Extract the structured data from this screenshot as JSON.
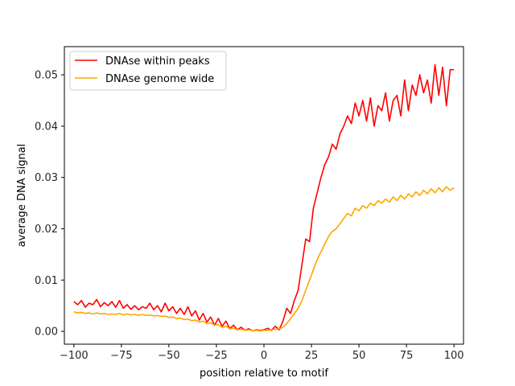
{
  "chart_data": {
    "type": "line",
    "title": "",
    "xlabel": "position relative to motif",
    "ylabel": "average DNA signal",
    "xlim": [
      -105,
      105
    ],
    "ylim": [
      -0.0025,
      0.0555
    ],
    "xticks": [
      -100,
      -75,
      -50,
      -25,
      0,
      25,
      50,
      75,
      100
    ],
    "xtick_labels": [
      "−100",
      "−75",
      "−50",
      "−25",
      "0",
      "25",
      "50",
      "75",
      "100"
    ],
    "yticks": [
      0.0,
      0.01,
      0.02,
      0.03,
      0.04,
      0.05
    ],
    "ytick_labels": [
      "0.00",
      "0.01",
      "0.02",
      "0.03",
      "0.04",
      "0.05"
    ],
    "grid": false,
    "legend_position": "top-left",
    "x": [
      -100,
      -98,
      -96,
      -94,
      -92,
      -90,
      -88,
      -86,
      -84,
      -82,
      -80,
      -78,
      -76,
      -74,
      -72,
      -70,
      -68,
      -66,
      -64,
      -62,
      -60,
      -58,
      -56,
      -54,
      -52,
      -50,
      -48,
      -46,
      -44,
      -42,
      -40,
      -38,
      -36,
      -34,
      -32,
      -30,
      -28,
      -26,
      -24,
      -22,
      -20,
      -18,
      -16,
      -14,
      -12,
      -10,
      -8,
      -6,
      -4,
      -2,
      0,
      2,
      4,
      6,
      8,
      10,
      12,
      14,
      16,
      18,
      20,
      22,
      24,
      26,
      28,
      30,
      32,
      34,
      36,
      38,
      40,
      42,
      44,
      46,
      48,
      50,
      52,
      54,
      56,
      58,
      60,
      62,
      64,
      66,
      68,
      70,
      72,
      74,
      76,
      78,
      80,
      82,
      84,
      86,
      88,
      90,
      92,
      94,
      96,
      98,
      100
    ],
    "series": [
      {
        "name": "DNAse within peaks",
        "color": "#ff0000",
        "values": [
          0.0058,
          0.0052,
          0.006,
          0.0047,
          0.0055,
          0.0052,
          0.0062,
          0.0048,
          0.0056,
          0.005,
          0.0058,
          0.0047,
          0.006,
          0.0045,
          0.0052,
          0.0043,
          0.005,
          0.0042,
          0.0048,
          0.0045,
          0.0055,
          0.0042,
          0.005,
          0.0038,
          0.0055,
          0.004,
          0.0048,
          0.0035,
          0.0045,
          0.0033,
          0.0048,
          0.003,
          0.004,
          0.0022,
          0.0035,
          0.0018,
          0.0028,
          0.0012,
          0.0025,
          0.001,
          0.002,
          0.0005,
          0.0012,
          0.0003,
          0.0008,
          0.0002,
          0.0005,
          0.0001,
          0.0003,
          0.0002,
          0.0003,
          0.0006,
          0.0002,
          0.001,
          0.0003,
          0.002,
          0.0045,
          0.0035,
          0.006,
          0.008,
          0.013,
          0.018,
          0.0175,
          0.024,
          0.027,
          0.03,
          0.0325,
          0.034,
          0.0365,
          0.0355,
          0.0385,
          0.04,
          0.042,
          0.0405,
          0.0445,
          0.042,
          0.045,
          0.041,
          0.0455,
          0.04,
          0.044,
          0.043,
          0.0465,
          0.041,
          0.045,
          0.046,
          0.042,
          0.049,
          0.043,
          0.048,
          0.046,
          0.05,
          0.0465,
          0.049,
          0.0445,
          0.052,
          0.046,
          0.0515,
          0.044,
          0.051,
          0.051
        ]
      },
      {
        "name": "DNAse genome wide",
        "color": "#ffa500",
        "values": [
          0.0038,
          0.0036,
          0.0037,
          0.0035,
          0.0036,
          0.0034,
          0.0036,
          0.0034,
          0.0035,
          0.0033,
          0.0034,
          0.0033,
          0.0035,
          0.0032,
          0.0034,
          0.0032,
          0.0033,
          0.0031,
          0.0033,
          0.0031,
          0.0032,
          0.003,
          0.0031,
          0.0029,
          0.003,
          0.0027,
          0.0028,
          0.0025,
          0.0026,
          0.0023,
          0.0024,
          0.0021,
          0.0022,
          0.0018,
          0.002,
          0.0015,
          0.0017,
          0.0012,
          0.0013,
          0.0008,
          0.001,
          0.0005,
          0.0006,
          0.0003,
          0.0004,
          0.0002,
          0.0003,
          0.0001,
          0.0002,
          0.0001,
          0.0002,
          0.0002,
          0.0003,
          0.0004,
          0.0005,
          0.0008,
          0.0015,
          0.0025,
          0.0035,
          0.0045,
          0.006,
          0.008,
          0.01,
          0.012,
          0.014,
          0.0155,
          0.017,
          0.0185,
          0.0195,
          0.02,
          0.021,
          0.022,
          0.023,
          0.0225,
          0.024,
          0.0235,
          0.0245,
          0.024,
          0.025,
          0.0245,
          0.0255,
          0.025,
          0.0258,
          0.0252,
          0.0262,
          0.0255,
          0.0265,
          0.0258,
          0.0268,
          0.0262,
          0.0272,
          0.0265,
          0.0275,
          0.0268,
          0.0278,
          0.027,
          0.028,
          0.0272,
          0.0282,
          0.0275,
          0.028
        ]
      }
    ]
  }
}
